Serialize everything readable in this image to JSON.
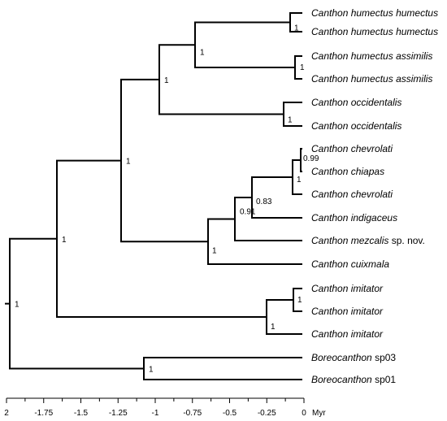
{
  "taxa": [
    {
      "genus": "Canthon",
      "epithet": "humectus humectus",
      "suffix": ""
    },
    {
      "genus": "Canthon",
      "epithet": "humectus humectus",
      "suffix": ""
    },
    {
      "genus": "Canthon",
      "epithet": "humectus assimilis",
      "suffix": ""
    },
    {
      "genus": "Canthon",
      "epithet": "humectus assimilis",
      "suffix": ""
    },
    {
      "genus": "Canthon",
      "epithet": "occidentalis",
      "suffix": ""
    },
    {
      "genus": "Canthon",
      "epithet": "occidentalis",
      "suffix": ""
    },
    {
      "genus": "Canthon",
      "epithet": "chevrolati",
      "suffix": ""
    },
    {
      "genus": "Canthon",
      "epithet": "chiapas",
      "suffix": ""
    },
    {
      "genus": "Canthon",
      "epithet": "chevrolati",
      "suffix": ""
    },
    {
      "genus": "Canthon",
      "epithet": "indigaceus",
      "suffix": ""
    },
    {
      "genus": "Canthon",
      "epithet": "mezcalis",
      "suffix": " sp. nov."
    },
    {
      "genus": "Canthon",
      "epithet": "cuixmala",
      "suffix": ""
    },
    {
      "genus": "Canthon",
      "epithet": "imitator",
      "suffix": ""
    },
    {
      "genus": "Canthon",
      "epithet": "imitator",
      "suffix": ""
    },
    {
      "genus": "Canthon",
      "epithet": "imitator",
      "suffix": ""
    },
    {
      "genus": "Boreocanthon",
      "epithet": "",
      "suffix": "sp03"
    },
    {
      "genus": "Boreocanthon",
      "epithet": "",
      "suffix": "sp01"
    }
  ],
  "support_values": [
    {
      "node": "humectus-humectus",
      "value": "1"
    },
    {
      "node": "humectus-assimilis",
      "value": "1"
    },
    {
      "node": "humectus-complex",
      "value": "1"
    },
    {
      "node": "occidentalis",
      "value": "1"
    },
    {
      "node": "humectus-occidentalis",
      "value": "1"
    },
    {
      "node": "chevrolati-chiapas",
      "value": "0.99"
    },
    {
      "node": "chevrolati-clade",
      "value": "1"
    },
    {
      "node": "indigaceus-clade",
      "value": "0.83"
    },
    {
      "node": "mezcalis-clade",
      "value": "0.91"
    },
    {
      "node": "cuixmala-clade",
      "value": "1"
    },
    {
      "node": "ingroup-large",
      "value": "1"
    },
    {
      "node": "imitator-pair",
      "value": "1"
    },
    {
      "node": "imitator-clade",
      "value": "1"
    },
    {
      "node": "canthon",
      "value": "1"
    },
    {
      "node": "boreocanthon",
      "value": "1"
    },
    {
      "node": "root",
      "value": "1"
    }
  ],
  "axis": {
    "ticks": [
      "2",
      "-1.75",
      "-1.5",
      "-1.25",
      "-1",
      "-0.75",
      "-0.5",
      "-0.25",
      "0"
    ],
    "unit": "Myr"
  }
}
